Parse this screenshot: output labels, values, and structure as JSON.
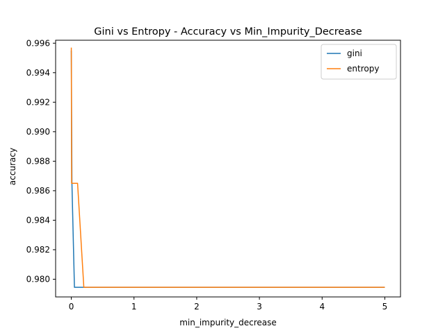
{
  "chart_data": {
    "type": "line",
    "title": "Gini vs Entropy - Accuracy vs Min_Impurity_Decrease",
    "xlabel": "min_impurity_decrease",
    "ylabel": "accuracy",
    "xlim": [
      -0.25,
      5.25
    ],
    "ylim": [
      0.9788,
      0.9962
    ],
    "xticks": [
      0,
      1,
      2,
      3,
      4,
      5
    ],
    "xtick_labels": [
      "0",
      "1",
      "2",
      "3",
      "4",
      "5"
    ],
    "yticks": [
      0.98,
      0.982,
      0.984,
      0.986,
      0.988,
      0.99,
      0.992,
      0.994,
      0.996
    ],
    "ytick_labels": [
      "0.980",
      "0.982",
      "0.984",
      "0.986",
      "0.988",
      "0.990",
      "0.992",
      "0.994",
      "0.996"
    ],
    "grid": false,
    "legend_position": "top-right",
    "series": [
      {
        "name": "gini",
        "color": "#1f77b4",
        "x": [
          0.0,
          0.005,
          0.01,
          0.05,
          0.1,
          0.2,
          0.5,
          1.0,
          2.0,
          3.0,
          4.0,
          5.0
        ],
        "y": [
          0.9955,
          0.9908,
          0.9865,
          0.97945,
          0.97945,
          0.97945,
          0.97945,
          0.97945,
          0.97945,
          0.97945,
          0.97945,
          0.97945
        ]
      },
      {
        "name": "entropy",
        "color": "#ff7f0e",
        "x": [
          0.0,
          0.005,
          0.01,
          0.05,
          0.1,
          0.2,
          0.5,
          1.0,
          2.0,
          3.0,
          4.0,
          5.0
        ],
        "y": [
          0.9957,
          0.9865,
          0.9865,
          0.9865,
          0.9865,
          0.97945,
          0.97945,
          0.97945,
          0.97945,
          0.97945,
          0.97945,
          0.97945
        ]
      }
    ]
  }
}
